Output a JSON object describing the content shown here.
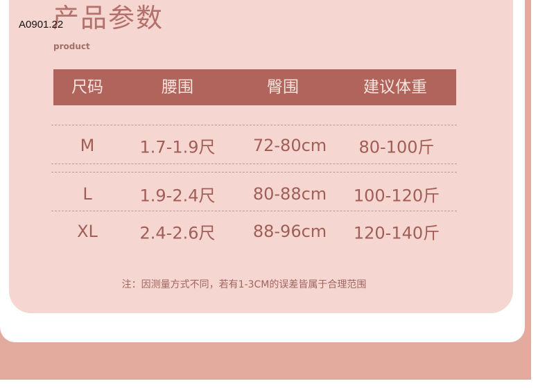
{
  "header": {
    "title": "产品参数",
    "subtitle": "product",
    "code": "A0901.22"
  },
  "table": {
    "columns": [
      "尺码",
      "腰围",
      "臀围",
      "建议体重"
    ],
    "rows": [
      [
        "M",
        "1.7-1.9尺",
        "72-80cm",
        "80-100斤"
      ],
      [
        "L",
        "1.9-2.4尺",
        "80-88cm",
        "100-120斤"
      ],
      [
        "XL",
        "2.4-2.6尺",
        "88-96cm",
        "120-140斤"
      ]
    ]
  },
  "note": "注：因测量方式不同，若有1-3CM的误差皆属于合理范围",
  "colors": {
    "panel": "#f6d6d0",
    "header": "#b0645b",
    "band": "#e3aa9e",
    "text": "#a15e57"
  }
}
